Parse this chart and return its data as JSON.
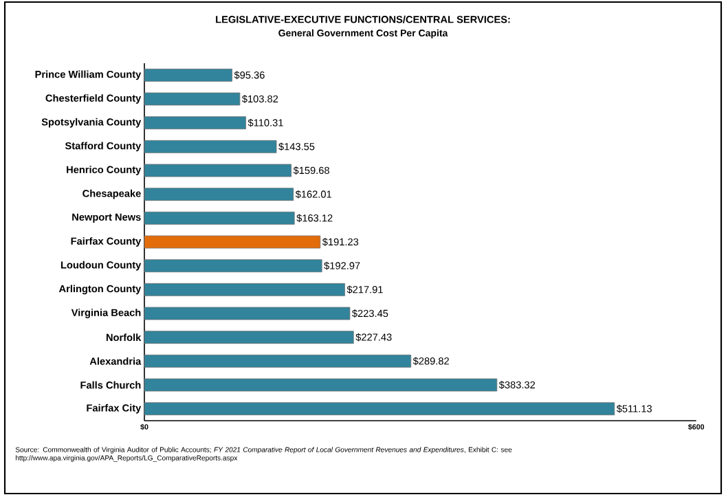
{
  "chart_data": {
    "type": "bar",
    "orientation": "horizontal",
    "title": "LEGISLATIVE-EXECUTIVE FUNCTIONS/CENTRAL SERVICES:",
    "subtitle": "General Government Cost Per Capita",
    "categories": [
      "Prince William County",
      "Chesterfield County",
      "Spotsylvania County",
      "Stafford County",
      "Henrico County",
      "Chesapeake",
      "Newport News",
      "Fairfax County",
      "Loudoun County",
      "Arlington County",
      "Virginia Beach",
      "Norfolk",
      "Alexandria",
      "Falls Church",
      "Fairfax City"
    ],
    "values": [
      95.36,
      103.82,
      110.31,
      143.55,
      159.68,
      162.01,
      163.12,
      191.23,
      192.97,
      217.91,
      223.45,
      227.43,
      289.82,
      383.32,
      511.13
    ],
    "value_labels": [
      "$95.36",
      "$103.82",
      "$110.31",
      "$143.55",
      "$159.68",
      "$162.01",
      "$163.12",
      "$191.23",
      "$192.97",
      "$217.91",
      "$223.45",
      "$227.43",
      "$289.82",
      "$383.32",
      "$511.13"
    ],
    "colors": [
      "#31849b",
      "#31849b",
      "#31849b",
      "#31849b",
      "#31849b",
      "#31849b",
      "#31849b",
      "#e36c0a",
      "#31849b",
      "#31849b",
      "#31849b",
      "#31849b",
      "#31849b",
      "#31849b",
      "#31849b"
    ],
    "xlim": [
      0,
      600
    ],
    "xticks": [
      {
        "value": 0,
        "label": "$0"
      },
      {
        "value": 600,
        "label": "$600"
      }
    ],
    "annotations": [
      "Source: Commonwealth of Virginia Auditor of Public Accounts; *FY 2021 Comparative Report of Local Government Revenues and Expenditures*, Exhibit C: see http://www.apa.virginia.gov/APA_Reports/LG_ComparativeReports.aspx"
    ]
  }
}
